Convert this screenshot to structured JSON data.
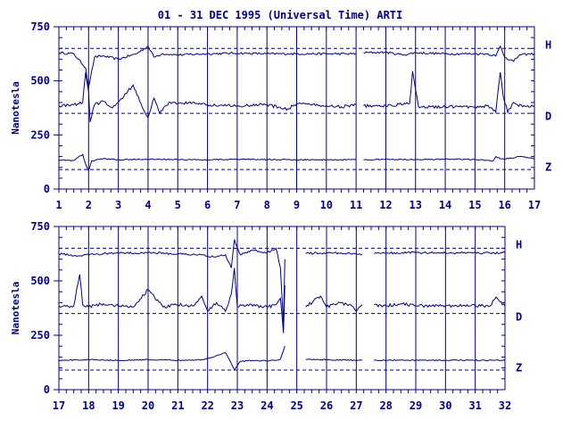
{
  "chart_data": {
    "type": "line",
    "title": "01 - 31 DEC 1995 (Universal Time) ARTI",
    "ylabel": "Nanotesla",
    "colors": {
      "line": "#00008b",
      "background": "#ffffff"
    },
    "reference_levels": [
      650,
      350,
      90
    ],
    "series_labels": [
      "H",
      "D",
      "Z"
    ],
    "panels": [
      {
        "ylim": [
          0,
          750
        ],
        "xlim": [
          1,
          17
        ],
        "yticks": [
          "0",
          "250",
          "500",
          "750"
        ],
        "xticks": [
          "1",
          "2",
          "3",
          "4",
          "5",
          "6",
          "7",
          "8",
          "9",
          "10",
          "11",
          "12",
          "13",
          "14",
          "15",
          "16",
          "17"
        ],
        "series": [
          {
            "name": "H",
            "x": [
              1,
              1.5,
              1.9,
              2.0,
              2.2,
              2.5,
              3,
              3.6,
              4,
              4.2,
              4.5,
              5,
              6,
              7,
              8,
              8.7,
              9,
              10,
              11,
              11.15,
              11.25,
              12,
              12.6,
              13,
              14,
              15,
              15.4,
              15.7,
              15.85,
              16,
              16.3,
              16.5,
              17
            ],
            "values": [
              630,
              625,
              560,
              470,
              610,
              615,
              600,
              625,
              660,
              610,
              625,
              620,
              625,
              628,
              625,
              625,
              625,
              625,
              625,
              null,
              630,
              632,
              620,
              630,
              625,
              625,
              625,
              615,
              660,
              610,
              590,
              620,
              625
            ]
          },
          {
            "name": "D",
            "x": [
              1,
              1.5,
              1.8,
              1.9,
              2.0,
              2.05,
              2.2,
              2.5,
              2.8,
              3,
              3.5,
              3.8,
              4,
              4.2,
              4.4,
              4.7,
              5,
              5.5,
              6,
              7,
              8,
              8.7,
              9,
              10,
              10.5,
              11,
              11.15,
              11.25,
              12,
              12.8,
              12.9,
              13.1,
              13.5,
              14,
              15,
              15.4,
              15.7,
              15.85,
              15.95,
              16.1,
              16.3,
              16.6,
              17
            ],
            "values": [
              385,
              390,
              400,
              540,
              450,
              310,
              390,
              405,
              375,
              400,
              480,
              380,
              330,
              420,
              350,
              400,
              395,
              400,
              390,
              385,
              390,
              370,
              395,
              385,
              380,
              390,
              null,
              385,
              385,
              395,
              545,
              380,
              380,
              380,
              380,
              385,
              355,
              540,
              430,
              355,
              400,
              380,
              385
            ]
          },
          {
            "name": "Z",
            "x": [
              1,
              1.5,
              1.8,
              1.9,
              2.0,
              2.1,
              2.5,
              3,
              4,
              5,
              6,
              7,
              8,
              8.7,
              9,
              10,
              11,
              11.15,
              11.25,
              12,
              13,
              14,
              15,
              15.6,
              15.7,
              15.85,
              16,
              16.5,
              17
            ],
            "values": [
              135,
              132,
              160,
              115,
              85,
              130,
              140,
              135,
              138,
              136,
              135,
              138,
              136,
              136,
              135,
              135,
              135,
              null,
              135,
              138,
              136,
              138,
              137,
              130,
              150,
              140,
              138,
              150,
              140
            ]
          }
        ]
      },
      {
        "ylim": [
          0,
          750
        ],
        "xlim": [
          17,
          32
        ],
        "yticks": [
          "0",
          "250",
          "500",
          "750"
        ],
        "xticks": [
          "17",
          "18",
          "19",
          "20",
          "21",
          "22",
          "23",
          "24",
          "25",
          "26",
          "27",
          "28",
          "29",
          "30",
          "31",
          "32"
        ],
        "series": [
          {
            "name": "H",
            "x": [
              17,
              17.5,
              18,
              18.5,
              19,
              20,
              21,
              21.8,
              22.2,
              22.6,
              22.8,
              22.9,
              23.1,
              23.5,
              24,
              24.3,
              24.45,
              24.55,
              24.6,
              25.15,
              25.3,
              26,
              26.8,
              27.2,
              27.4,
              27.6,
              28,
              29,
              30,
              31,
              31.5,
              32
            ],
            "values": [
              625,
              615,
              620,
              625,
              628,
              630,
              625,
              620,
              610,
              620,
              560,
              690,
              620,
              640,
              630,
              650,
              560,
              300,
              600,
              null,
              625,
              630,
              625,
              620,
              null,
              625,
              628,
              630,
              628,
              630,
              628,
              630
            ]
          },
          {
            "name": "D",
            "x": [
              17,
              17.5,
              17.7,
              17.8,
              18,
              18.5,
              19,
              19.5,
              20,
              20.5,
              21,
              21.5,
              21.8,
              22,
              22.3,
              22.6,
              22.8,
              22.9,
              23,
              23.2,
              23.6,
              24,
              24.3,
              24.45,
              24.55,
              24.6,
              25.15,
              25.3,
              25.8,
              26,
              26.5,
              26.9,
              27,
              27.2,
              27.4,
              27.6,
              28,
              28.5,
              29,
              30,
              31,
              31.5,
              31.7,
              32
            ],
            "values": [
              385,
              385,
              530,
              390,
              380,
              395,
              385,
              380,
              460,
              380,
              390,
              385,
              430,
              360,
              400,
              360,
              440,
              560,
              380,
              390,
              385,
              380,
              390,
              420,
              260,
              480,
              null,
              380,
              430,
              380,
              400,
              380,
              360,
              390,
              null,
              390,
              385,
              395,
              385,
              385,
              385,
              385,
              425,
              385
            ]
          },
          {
            "name": "Z",
            "x": [
              17,
              18,
              19,
              20,
              21,
              21.8,
              22.2,
              22.6,
              22.8,
              22.9,
              23.1,
              23.5,
              24,
              24.3,
              24.45,
              24.55,
              24.6,
              25.15,
              25.3,
              26,
              27,
              27.2,
              27.4,
              27.6,
              28,
              29,
              30,
              31,
              32
            ],
            "values": [
              135,
              138,
              135,
              138,
              135,
              138,
              150,
              170,
              120,
              90,
              130,
              135,
              132,
              135,
              140,
              180,
              200,
              null,
              138,
              138,
              135,
              135,
              null,
              135,
              135,
              135,
              135,
              135,
              135
            ]
          }
        ]
      }
    ]
  }
}
